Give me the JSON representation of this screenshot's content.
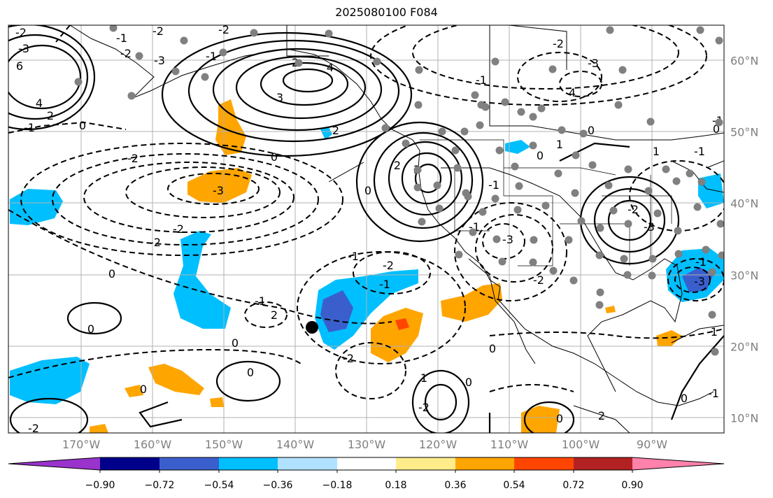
{
  "title": "2025080100 F084",
  "longitude_labels": [
    "170°W",
    "160°W",
    "150°W",
    "140°W",
    "130°W",
    "120°W",
    "110°W",
    "100°W",
    "90°W"
  ],
  "latitude_labels": [
    "60°N",
    "50°N",
    "40°N",
    "30°N",
    "20°N",
    "10°N"
  ],
  "colorbar": {
    "tick_labels": [
      "−0.90",
      "−0.72",
      "−0.54",
      "−0.36",
      "−0.18",
      "0.18",
      "0.36",
      "0.54",
      "0.72",
      "0.90"
    ],
    "colors": [
      "#9933cc",
      "#00008b",
      "#3a5fcd",
      "#00bfff",
      "#b0e2ff",
      "#ffffff",
      "#ffec8b",
      "#ffa500",
      "#ff4500",
      "#b22222",
      "#ff82ab"
    ]
  },
  "contour_labels": [
    "-2",
    "-3",
    "6",
    "4",
    "2",
    "-1",
    "0",
    "-2",
    "-1",
    "-3",
    "-2",
    "-2",
    "-1",
    "2",
    "3",
    "4",
    "2",
    "0",
    "-2",
    "-3",
    "4",
    "-1",
    "0",
    "1",
    "-1",
    "3",
    "2",
    "-2",
    "-3",
    "-3",
    "-2",
    "-2",
    "0",
    "-1",
    "-1",
    "-2",
    "-1",
    "-1",
    "0",
    "0",
    "-1",
    "-2",
    "0",
    "0",
    "2",
    "-2",
    "0",
    "1",
    "0",
    "-2",
    "-1",
    "-3",
    "-3",
    "-2",
    "1",
    "0",
    "-1",
    "0",
    "2",
    "0",
    "-1",
    "0",
    "-2",
    "0",
    "-1",
    "0",
    "0",
    "0",
    "0",
    "0",
    "0"
  ],
  "markers": {
    "highlight": "large black dot",
    "stations": "gray dots"
  }
}
